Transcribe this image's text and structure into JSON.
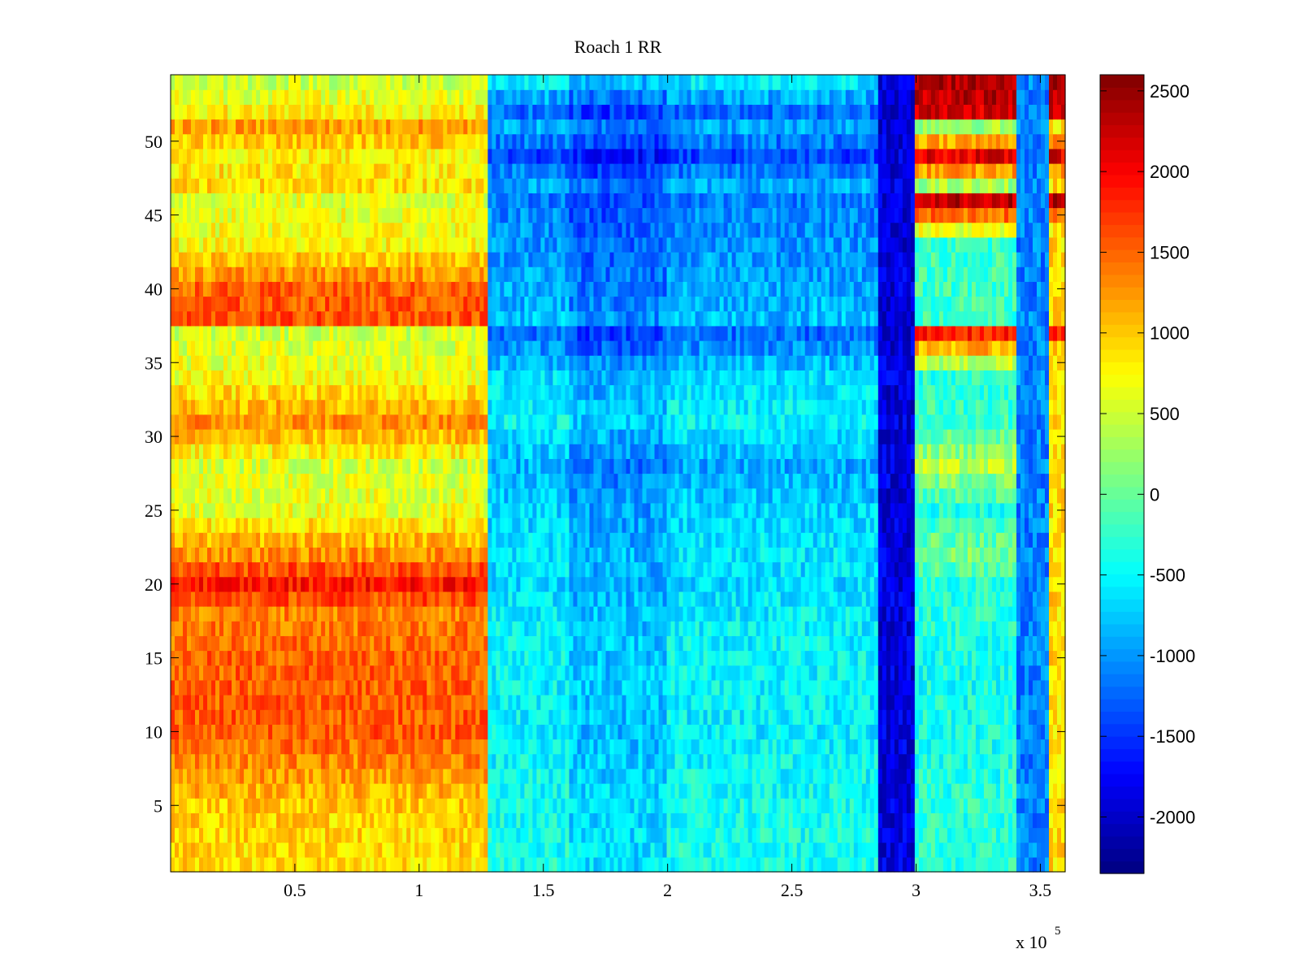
{
  "chart_data": {
    "type": "heatmap",
    "title": "Roach 1 RR",
    "xlabel": "",
    "ylabel": "",
    "x_exponent_label": "x 10",
    "x_exponent_power": "5",
    "xlim": [
      0,
      360000
    ],
    "ylim": [
      0.5,
      54.5
    ],
    "x_ticks": [
      {
        "value": 50000,
        "label": "0.5"
      },
      {
        "value": 100000,
        "label": "1"
      },
      {
        "value": 150000,
        "label": "1.5"
      },
      {
        "value": 200000,
        "label": "2"
      },
      {
        "value": 250000,
        "label": "2.5"
      },
      {
        "value": 300000,
        "label": "3"
      },
      {
        "value": 350000,
        "label": "3.5"
      }
    ],
    "y_ticks": [
      {
        "value": 5,
        "label": "5"
      },
      {
        "value": 10,
        "label": "10"
      },
      {
        "value": 15,
        "label": "15"
      },
      {
        "value": 20,
        "label": "20"
      },
      {
        "value": 25,
        "label": "25"
      },
      {
        "value": 30,
        "label": "30"
      },
      {
        "value": 35,
        "label": "35"
      },
      {
        "value": 40,
        "label": "40"
      },
      {
        "value": 45,
        "label": "45"
      },
      {
        "value": 50,
        "label": "50"
      }
    ],
    "colorbar": {
      "colormap": "jet",
      "clim": [
        -2350,
        2600
      ],
      "ticks": [
        {
          "value": 2500,
          "label": "2500"
        },
        {
          "value": 2000,
          "label": "2000"
        },
        {
          "value": 1500,
          "label": "1500"
        },
        {
          "value": 1000,
          "label": "1000"
        },
        {
          "value": 500,
          "label": "500"
        },
        {
          "value": 0,
          "label": "0"
        },
        {
          "value": -500,
          "label": "-500"
        },
        {
          "value": -1000,
          "label": "-1000"
        },
        {
          "value": -1500,
          "label": "-1500"
        },
        {
          "value": -2000,
          "label": "-2000"
        }
      ]
    },
    "rows": 54,
    "x_segments": [
      {
        "x_start": 0,
        "x_end": 128000,
        "base_value": 1100,
        "note_rows_high": [
          13,
          14,
          15,
          16,
          17,
          18,
          19,
          20,
          21,
          22,
          23,
          30,
          31,
          32,
          38,
          40,
          47,
          50
        ]
      },
      {
        "x_start": 128000,
        "x_end": 285000,
        "base_value": -700
      },
      {
        "x_start": 285000,
        "x_end": 300000,
        "base_value": -1800
      },
      {
        "x_start": 300000,
        "x_end": 340000,
        "base_value": -300
      },
      {
        "x_start": 340000,
        "x_end": 353000,
        "base_value": -1000
      },
      {
        "x_start": 353000,
        "x_end": 360000,
        "base_value": 900
      }
    ],
    "row_profiles": [
      {
        "row": 1,
        "early": 900,
        "mid": -400,
        "late": -300
      },
      {
        "row": 5,
        "early": 1000,
        "mid": -400,
        "late": -300
      },
      {
        "row": 10,
        "early": 1550,
        "mid": -550,
        "late": -400
      },
      {
        "row": 15,
        "early": 1500,
        "mid": -500,
        "late": -400
      },
      {
        "row": 18,
        "early": 1350,
        "mid": -550,
        "late": -300
      },
      {
        "row": 20,
        "early": 1900,
        "mid": -650,
        "late": -300
      },
      {
        "row": 22,
        "early": 1300,
        "mid": -600,
        "late": 100
      },
      {
        "row": 25,
        "early": 650,
        "mid": -700,
        "late": -350
      },
      {
        "row": 28,
        "early": 550,
        "mid": -900,
        "late": 400
      },
      {
        "row": 31,
        "early": 1300,
        "mid": -500,
        "late": -200
      },
      {
        "row": 34,
        "early": 700,
        "mid": -650,
        "late": -300
      },
      {
        "row": 37,
        "early": 500,
        "mid": -1200,
        "late": 1800
      },
      {
        "row": 38,
        "early": 1600,
        "mid": -800,
        "late": -200
      },
      {
        "row": 40,
        "early": 1500,
        "mid": -900,
        "late": -200
      },
      {
        "row": 43,
        "early": 750,
        "mid": -1000,
        "late": -200
      },
      {
        "row": 46,
        "early": 600,
        "mid": -1100,
        "late": 2300
      },
      {
        "row": 47,
        "early": 900,
        "mid": -900,
        "late": 300
      },
      {
        "row": 49,
        "early": 800,
        "mid": -1400,
        "late": 2100
      },
      {
        "row": 51,
        "early": 1200,
        "mid": -900,
        "late": 300
      },
      {
        "row": 52,
        "early": 800,
        "mid": -1200,
        "late": 2200
      },
      {
        "row": 54,
        "early": 500,
        "mid": -600,
        "late": 2400
      }
    ]
  }
}
